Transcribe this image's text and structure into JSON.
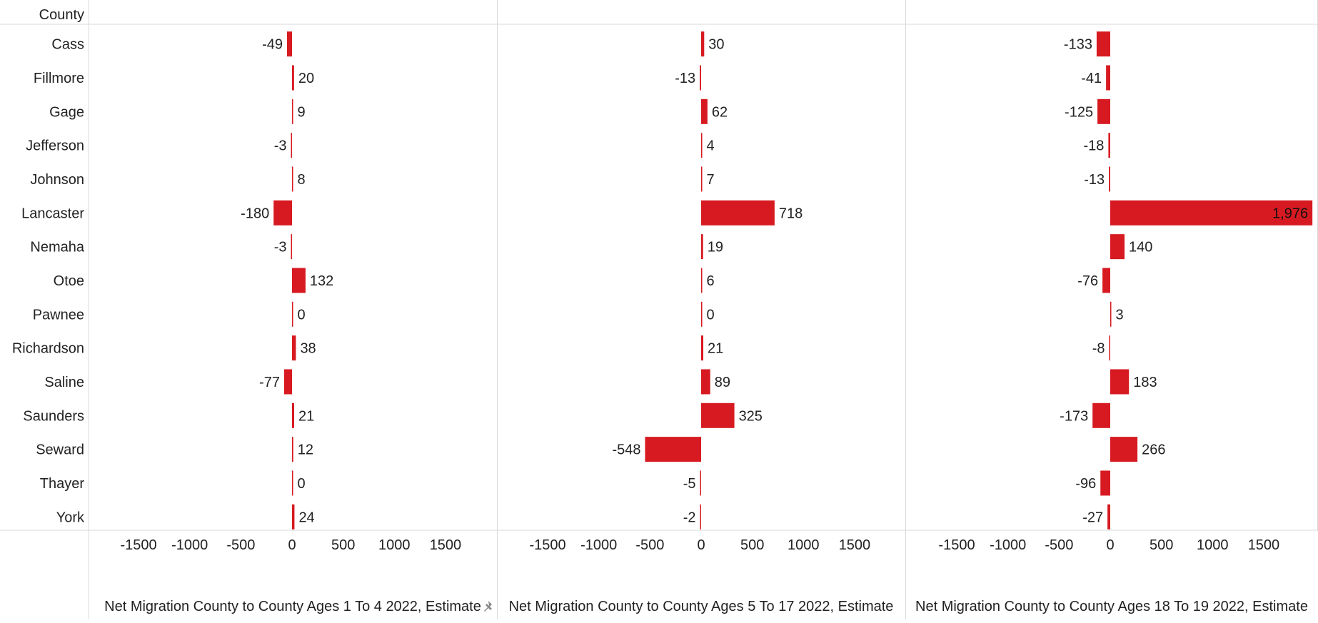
{
  "chart_data": {
    "type": "bar",
    "orientation": "horizontal",
    "row_header": "County",
    "categories": [
      "Cass",
      "Fillmore",
      "Gage",
      "Jefferson",
      "Johnson",
      "Lancaster",
      "Nemaha",
      "Otoe",
      "Pawnee",
      "Richardson",
      "Saline",
      "Saunders",
      "Seward",
      "Thayer",
      "York"
    ],
    "series": [
      {
        "name": "Net Migration County to County Ages 1 To 4 2022, Estimate",
        "values": [
          -49,
          20,
          9,
          -3,
          8,
          -180,
          -3,
          132,
          0,
          38,
          -77,
          21,
          12,
          0,
          24
        ],
        "labels": [
          "-49",
          "20",
          "9",
          "-3",
          "8",
          "-180",
          "-3",
          "132",
          "0",
          "38",
          "-77",
          "21",
          "12",
          "0",
          "24"
        ]
      },
      {
        "name": "Net Migration County to County Ages 5 To 17 2022, Estimate",
        "values": [
          30,
          -13,
          62,
          4,
          7,
          718,
          19,
          6,
          0,
          21,
          89,
          325,
          -548,
          -5,
          -2
        ],
        "labels": [
          "30",
          "-13",
          "62",
          "4",
          "7",
          "718",
          "19",
          "6",
          "0",
          "21",
          "89",
          "325",
          "-548",
          "-5",
          "-2"
        ]
      },
      {
        "name": "Net Migration County to County Ages 18 To 19 2022, Estimate",
        "values": [
          -133,
          -41,
          -125,
          -18,
          -13,
          1976,
          140,
          -76,
          3,
          -8,
          183,
          -173,
          266,
          -96,
          -27
        ],
        "labels": [
          "-133",
          "-41",
          "-125",
          "-18",
          "-13",
          "1,976",
          "140",
          "-76",
          "3",
          "-8",
          "183",
          "-173",
          "266",
          "-96",
          "-27"
        ]
      }
    ],
    "xlim": [
      -1800,
      1976
    ],
    "xticks": [
      -1500,
      -1000,
      -500,
      0,
      500,
      1000,
      1500
    ],
    "xtick_labels": [
      "-1500",
      "-1000",
      "-500",
      "0",
      "500",
      "1000",
      "1500"
    ],
    "bar_color": "#d71a21",
    "grid": false,
    "legend": "none"
  }
}
